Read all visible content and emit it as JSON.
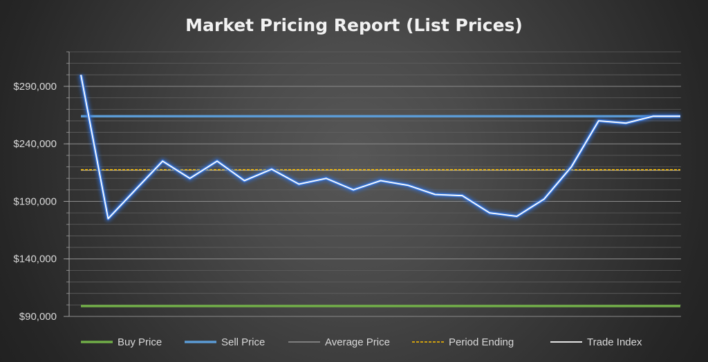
{
  "chart_data": {
    "type": "line",
    "title": "Market Pricing Report (List Prices)",
    "xlabel": "",
    "ylabel": "",
    "ylim": [
      90000,
      320000
    ],
    "y_ticks": [
      90000,
      140000,
      190000,
      240000,
      290000
    ],
    "y_tick_labels": [
      "$90,000",
      "$140,000",
      "$190,000",
      "$240,000",
      "$290,000"
    ],
    "grid": true,
    "legend_position": "bottom",
    "x": [
      1,
      2,
      3,
      4,
      5,
      6,
      7,
      8,
      9,
      10,
      11,
      12,
      13,
      14,
      15,
      16,
      17,
      18,
      19,
      20,
      21,
      22,
      23
    ],
    "series": [
      {
        "name": "Buy Price",
        "color": "#70ad47",
        "style": "solid",
        "values": [
          99000,
          99000,
          99000,
          99000,
          99000,
          99000,
          99000,
          99000,
          99000,
          99000,
          99000,
          99000,
          99000,
          99000,
          99000,
          99000,
          99000,
          99000,
          99000,
          99000,
          99000,
          99000,
          99000
        ]
      },
      {
        "name": "Sell Price",
        "color": "#5b9bd5",
        "style": "solid",
        "values": [
          264000,
          264000,
          264000,
          264000,
          264000,
          264000,
          264000,
          264000,
          264000,
          264000,
          264000,
          264000,
          264000,
          264000,
          264000,
          264000,
          264000,
          264000,
          264000,
          264000,
          264000,
          264000,
          264000
        ]
      },
      {
        "name": "Average Price",
        "color": "#a5a5a5",
        "style": "solid",
        "values": [
          217000,
          217000,
          217000,
          217000,
          217000,
          217000,
          217000,
          217000,
          217000,
          217000,
          217000,
          217000,
          217000,
          217000,
          217000,
          217000,
          217000,
          217000,
          217000,
          217000,
          217000,
          217000,
          217000
        ]
      },
      {
        "name": "Period Ending",
        "color": "#ffc000",
        "style": "dashed",
        "values": [
          217500,
          217500,
          217500,
          217500,
          217500,
          217500,
          217500,
          217500,
          217500,
          217500,
          217500,
          217500,
          217500,
          217500,
          217500,
          217500,
          217500,
          217500,
          217500,
          217500,
          217500,
          217500,
          217500
        ]
      },
      {
        "name": "Trade Index",
        "color": "#ffffff",
        "style": "glow",
        "values": [
          300000,
          175000,
          200000,
          225000,
          210000,
          225000,
          208000,
          218000,
          205000,
          210000,
          200000,
          208000,
          204000,
          196000,
          195000,
          180000,
          177000,
          192000,
          220000,
          260000,
          258000,
          264000,
          264000
        ]
      }
    ]
  }
}
